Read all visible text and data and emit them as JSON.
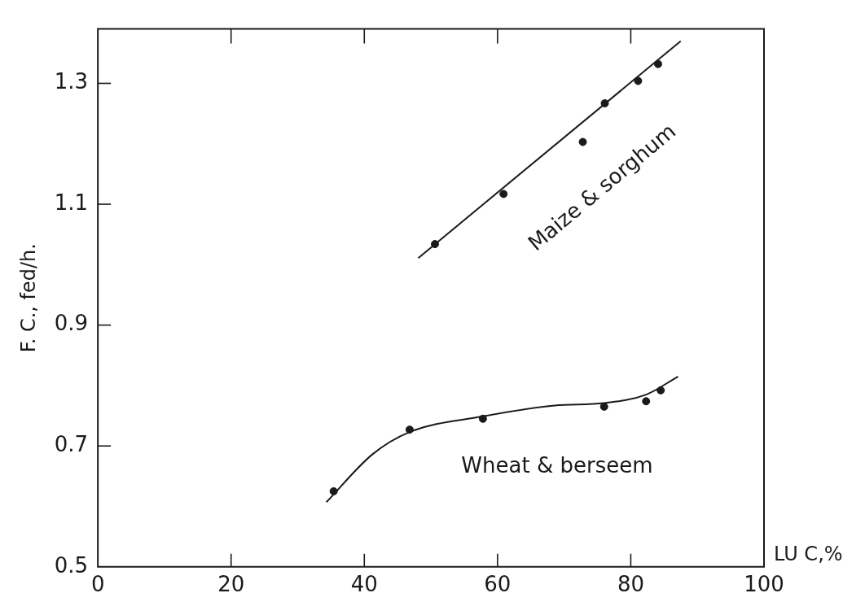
{
  "chart_data": {
    "type": "scatter",
    "xlabel": "LU C,%",
    "ylabel": "F. C., fed/h.",
    "xlim": [
      0,
      100
    ],
    "xticks": [
      0,
      20,
      40,
      60,
      80,
      100
    ],
    "ylim": [
      0.5,
      1.39
    ],
    "yticks": [
      0.5,
      0.7,
      0.9,
      1.1,
      1.3
    ],
    "grid": false,
    "legend": false,
    "marker": "circle",
    "series": [
      {
        "name": "Maize & sorghum",
        "color": "#1a1a1a",
        "x": [
          50.6,
          60.9,
          72.8,
          76.1,
          81.1,
          84.1
        ],
        "values": [
          1.034,
          1.117,
          1.203,
          1.267,
          1.304,
          1.332
        ]
      },
      {
        "type": "line",
        "marker": "none",
        "color": "#1a1a1a",
        "x": [
          48.1,
          87.5
        ],
        "values": [
          1.011,
          1.37
        ]
      },
      {
        "name": "Wheat & berseem",
        "color": "#1a1a1a",
        "x": [
          35.4,
          46.8,
          57.8,
          76.0,
          82.3,
          84.5
        ],
        "values": [
          0.625,
          0.727,
          0.745,
          0.765,
          0.774,
          0.792
        ]
      },
      {
        "type": "line",
        "marker": "none",
        "color": "#1a1a1a",
        "x": [
          34.3,
          41.2,
          46.8,
          57.8,
          68.6,
          76.0,
          82.3,
          87.1
        ],
        "values": [
          0.607,
          0.686,
          0.723,
          0.749,
          0.767,
          0.771,
          0.785,
          0.815
        ]
      }
    ]
  }
}
